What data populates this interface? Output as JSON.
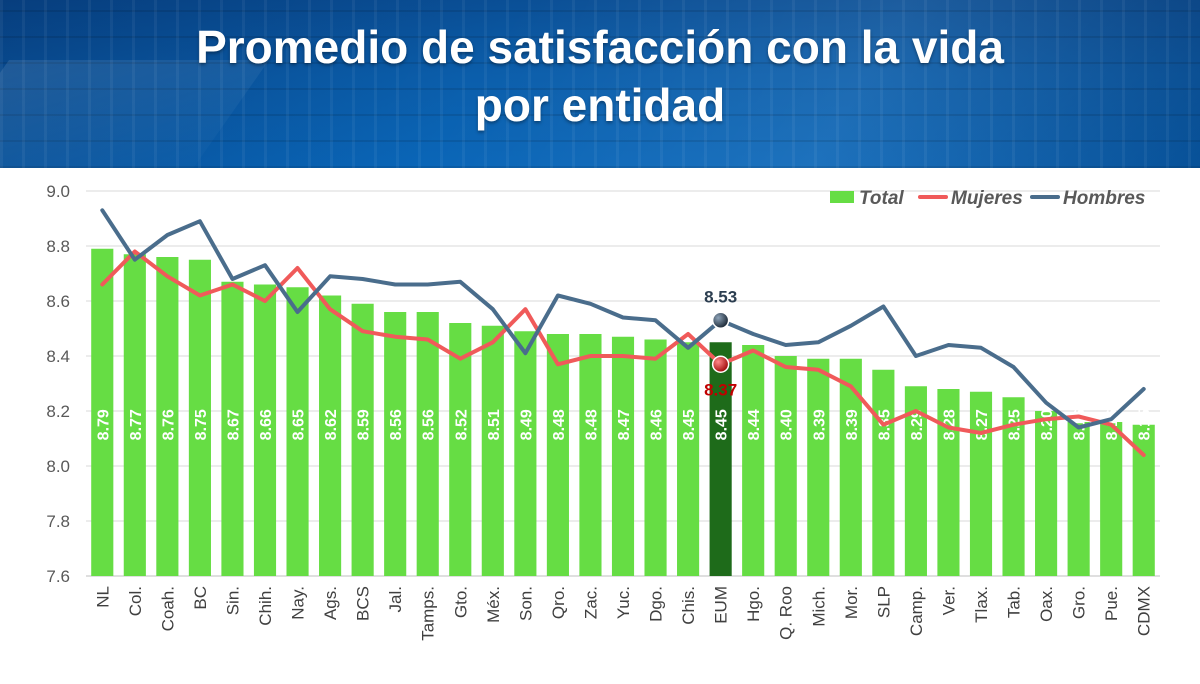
{
  "title_line1": "Promedio de satisfacción con la vida",
  "title_line2": "por entidad",
  "colors": {
    "total": "#66dd44",
    "total_highlight": "#1e6b1a",
    "mujeres": "#f05a5a",
    "hombres": "#4a6d8c",
    "banner": "#0b5eab"
  },
  "chart_data": {
    "type": "bar",
    "title": "Promedio de satisfacción con la vida por entidad",
    "xlabel": "",
    "ylabel": "",
    "ylim": [
      7.6,
      9.0
    ],
    "yticks": [
      "7.6",
      "7.8",
      "8.0",
      "8.2",
      "8.4",
      "8.6",
      "8.8",
      "9.0"
    ],
    "grid": true,
    "legend_position": "top-right",
    "highlight_category": "EUM",
    "categories": [
      "NL",
      "Col.",
      "Coah.",
      "BC",
      "Sin.",
      "Chih.",
      "Nay.",
      "Ags.",
      "BCS",
      "Jal.",
      "Tamps.",
      "Gto.",
      "Méx.",
      "Son.",
      "Qro.",
      "Zac.",
      "Yuc.",
      "Dgo.",
      "Chis.",
      "EUM",
      "Hgo.",
      "Q. Roo",
      "Mich.",
      "Mor.",
      "SLP",
      "Camp.",
      "Ver.",
      "Tlax.",
      "Tab.",
      "Oax.",
      "Gro.",
      "Pue.",
      "CDMX"
    ],
    "series": [
      {
        "name": "Total",
        "type": "bar",
        "values": [
          8.79,
          8.77,
          8.76,
          8.75,
          8.67,
          8.66,
          8.65,
          8.62,
          8.59,
          8.56,
          8.56,
          8.52,
          8.51,
          8.49,
          8.48,
          8.48,
          8.47,
          8.46,
          8.45,
          8.45,
          8.44,
          8.4,
          8.39,
          8.39,
          8.35,
          8.29,
          8.28,
          8.27,
          8.25,
          8.2,
          8.16,
          8.16,
          8.15
        ],
        "labels": [
          "8.79",
          "8.77",
          "8.76",
          "8.75",
          "8.67",
          "8.66",
          "8.65",
          "8.62",
          "8.59",
          "8.56",
          "8.56",
          "8.52",
          "8.51",
          "8.49",
          "8.48",
          "8.48",
          "8.47",
          "8.46",
          "8.45",
          "8.45",
          "8.44",
          "8.40",
          "8.39",
          "8.39",
          "8.35",
          "8.29",
          "8.28",
          "8.27",
          "8.25",
          "8.20",
          "8.16",
          "8.16",
          "8.15"
        ]
      },
      {
        "name": "Mujeres",
        "type": "line",
        "values": [
          8.66,
          8.78,
          8.69,
          8.62,
          8.66,
          8.6,
          8.72,
          8.57,
          8.49,
          8.47,
          8.46,
          8.39,
          8.45,
          8.57,
          8.37,
          8.4,
          8.4,
          8.39,
          8.48,
          8.37,
          8.42,
          8.36,
          8.35,
          8.29,
          8.15,
          8.2,
          8.14,
          8.12,
          8.15,
          8.17,
          8.18,
          8.15,
          8.04
        ]
      },
      {
        "name": "Hombres",
        "type": "line",
        "values": [
          8.93,
          8.75,
          8.84,
          8.89,
          8.68,
          8.73,
          8.56,
          8.69,
          8.68,
          8.66,
          8.66,
          8.67,
          8.57,
          8.41,
          8.62,
          8.59,
          8.54,
          8.53,
          8.43,
          8.53,
          8.48,
          8.44,
          8.45,
          8.51,
          8.58,
          8.4,
          8.44,
          8.43,
          8.36,
          8.23,
          8.14,
          8.17,
          8.28
        ]
      }
    ],
    "annotations": [
      {
        "series": "Hombres",
        "category": "EUM",
        "value": 8.53,
        "text": "8.53"
      },
      {
        "series": "Mujeres",
        "category": "EUM",
        "value": 8.37,
        "text": "8.37"
      }
    ]
  }
}
